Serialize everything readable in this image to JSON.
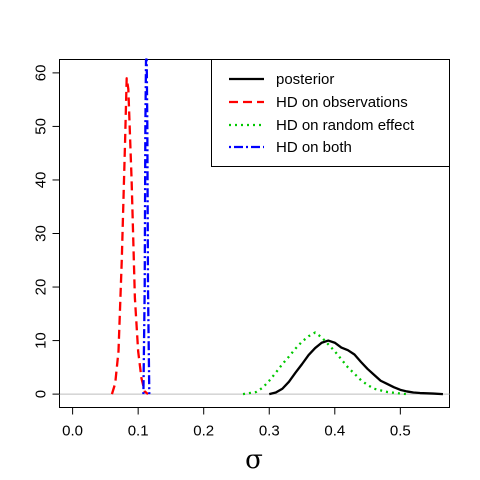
{
  "chart_data": {
    "type": "line",
    "title": "",
    "xlabel": "σ",
    "ylabel": "",
    "xlim": [
      -0.02,
      0.575
    ],
    "ylim": [
      -2.5,
      62.5
    ],
    "xticks": [
      0.0,
      0.1,
      0.2,
      0.3,
      0.4,
      0.5
    ],
    "xtick_labels": [
      "0.0",
      "0.1",
      "0.2",
      "0.3",
      "0.4",
      "0.5"
    ],
    "yticks": [
      0,
      10,
      20,
      30,
      40,
      50,
      60
    ],
    "ytick_labels": [
      "0",
      "10",
      "20",
      "30",
      "40",
      "50",
      "60"
    ],
    "grid": false,
    "legend_position": "top-right",
    "baseline": {
      "y": 0,
      "color": "#bebebe"
    },
    "series": [
      {
        "name": "posterior",
        "color": "#000000",
        "dash": "solid",
        "points": [
          [
            0.3,
            0.0
          ],
          [
            0.31,
            0.3
          ],
          [
            0.32,
            1.0
          ],
          [
            0.33,
            2.3
          ],
          [
            0.34,
            4.0
          ],
          [
            0.35,
            5.6
          ],
          [
            0.36,
            7.3
          ],
          [
            0.37,
            8.6
          ],
          [
            0.38,
            9.6
          ],
          [
            0.39,
            10.0
          ],
          [
            0.4,
            9.6
          ],
          [
            0.41,
            8.7
          ],
          [
            0.42,
            8.2
          ],
          [
            0.43,
            7.4
          ],
          [
            0.44,
            6.0
          ],
          [
            0.45,
            4.7
          ],
          [
            0.46,
            3.6
          ],
          [
            0.47,
            2.5
          ],
          [
            0.48,
            1.9
          ],
          [
            0.49,
            1.3
          ],
          [
            0.5,
            0.8
          ],
          [
            0.51,
            0.5
          ],
          [
            0.52,
            0.3
          ],
          [
            0.53,
            0.2
          ],
          [
            0.55,
            0.1
          ],
          [
            0.565,
            0.0
          ]
        ]
      },
      {
        "name": "HD on observations",
        "color": "#ff0000",
        "dash": "dashed",
        "points": [
          [
            0.06,
            0.0
          ],
          [
            0.065,
            2.0
          ],
          [
            0.07,
            8.0
          ],
          [
            0.075,
            25.0
          ],
          [
            0.08,
            47.0
          ],
          [
            0.0825,
            59.0
          ],
          [
            0.085,
            57.0
          ],
          [
            0.09,
            40.0
          ],
          [
            0.095,
            18.0
          ],
          [
            0.1,
            8.0
          ],
          [
            0.105,
            3.0
          ],
          [
            0.11,
            0.5
          ],
          [
            0.115,
            0.0
          ]
        ]
      },
      {
        "name": "HD on random effect",
        "color": "#00c800",
        "dash": "dotted",
        "points": [
          [
            0.26,
            0.0
          ],
          [
            0.28,
            0.4
          ],
          [
            0.29,
            1.2
          ],
          [
            0.3,
            2.5
          ],
          [
            0.31,
            4.0
          ],
          [
            0.32,
            5.6
          ],
          [
            0.33,
            7.0
          ],
          [
            0.34,
            8.5
          ],
          [
            0.35,
            9.8
          ],
          [
            0.36,
            10.8
          ],
          [
            0.37,
            11.5
          ],
          [
            0.38,
            10.6
          ],
          [
            0.39,
            9.3
          ],
          [
            0.4,
            8.0
          ],
          [
            0.41,
            6.5
          ],
          [
            0.42,
            5.0
          ],
          [
            0.43,
            3.8
          ],
          [
            0.44,
            2.6
          ],
          [
            0.45,
            1.7
          ],
          [
            0.46,
            1.0
          ],
          [
            0.48,
            0.4
          ],
          [
            0.5,
            0.1
          ],
          [
            0.51,
            0.0
          ]
        ]
      },
      {
        "name": "HD on both",
        "color": "#0000ff",
        "dash": "dotdash",
        "points": [
          [
            0.108,
            0.0
          ],
          [
            0.11,
            20.0
          ],
          [
            0.111,
            50.0
          ],
          [
            0.112,
            62.5
          ],
          [
            0.113,
            62.5
          ],
          [
            0.114,
            50.0
          ],
          [
            0.115,
            20.0
          ],
          [
            0.117,
            0.0
          ]
        ]
      }
    ]
  }
}
